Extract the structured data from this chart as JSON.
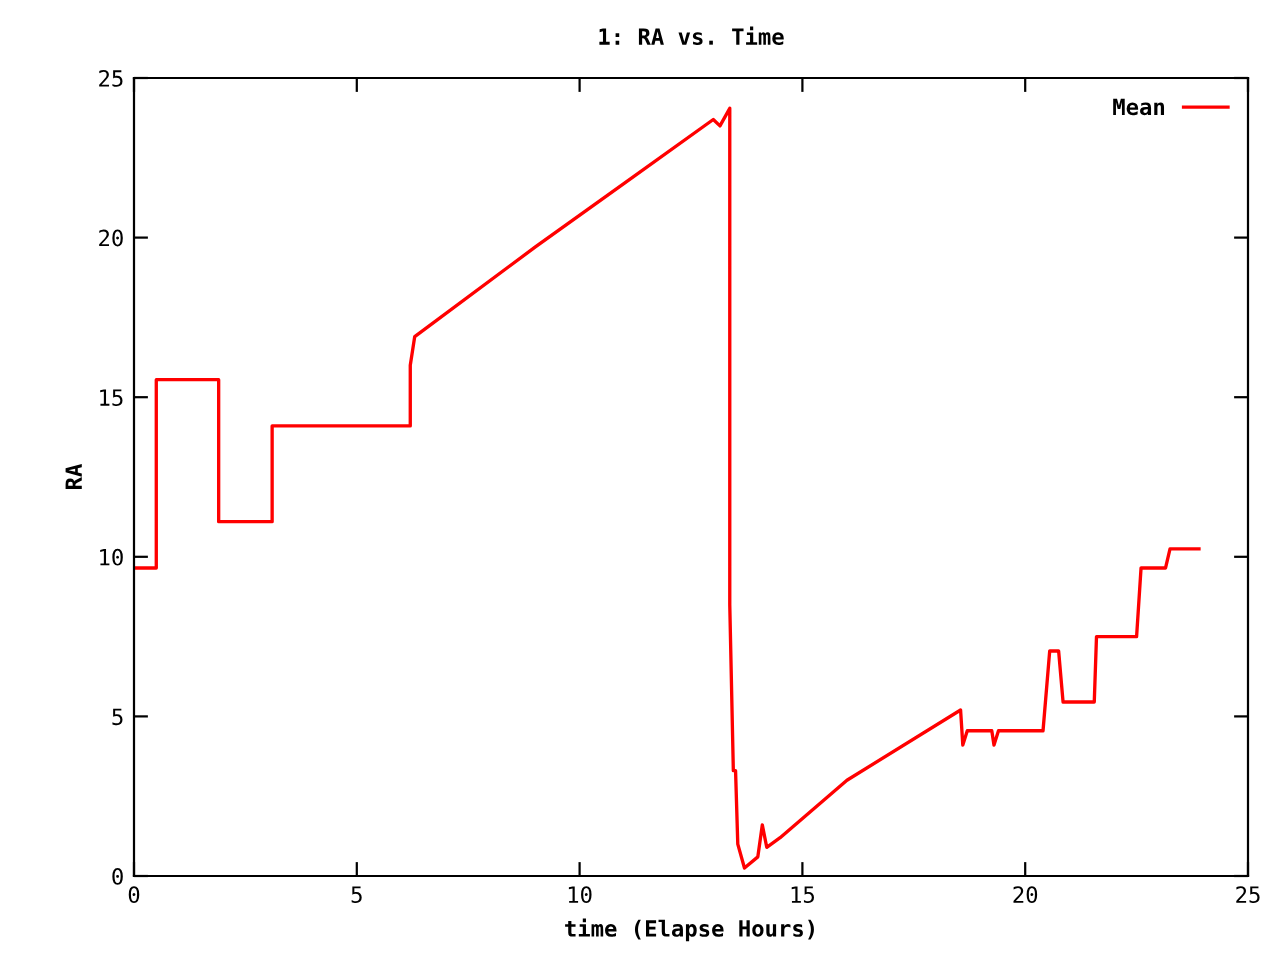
{
  "chart_data": {
    "type": "line",
    "title": "1: RA vs. Time",
    "xlabel": "time (Elapse Hours)",
    "ylabel": "RA",
    "series": [
      {
        "name": "Mean",
        "color": "#ff0000",
        "x": [
          0,
          0.5,
          0.5,
          1.9,
          1.9,
          3.1,
          3.1,
          6.2,
          6.2,
          6.3,
          9.0,
          11.0,
          13.0,
          13.15,
          13.37,
          13.37,
          13.45,
          13.5,
          13.55,
          13.7,
          14.0,
          14.1,
          14.2,
          14.5,
          16.0,
          18.55,
          18.6,
          18.7,
          19.25,
          19.3,
          19.4,
          20.4,
          20.55,
          20.75,
          20.85,
          21.55,
          21.6,
          22.5,
          22.6,
          23.15,
          23.25,
          23.9
        ],
        "values": [
          9.65,
          9.65,
          15.55,
          15.55,
          11.1,
          11.1,
          14.1,
          14.1,
          16.0,
          16.9,
          19.7,
          21.7,
          23.7,
          23.5,
          24.05,
          8.5,
          3.3,
          3.3,
          1.0,
          0.25,
          0.6,
          1.6,
          0.9,
          1.2,
          3.0,
          5.2,
          4.1,
          4.55,
          4.55,
          4.1,
          4.55,
          4.55,
          7.05,
          7.05,
          5.45,
          5.45,
          7.5,
          7.5,
          9.65,
          9.65,
          10.25,
          10.25
        ]
      }
    ],
    "xlim": [
      0,
      25
    ],
    "ylim": [
      0,
      25
    ],
    "xticks": [
      0,
      5,
      10,
      15,
      20,
      25
    ],
    "yticks": [
      0,
      5,
      10,
      15,
      20,
      25
    ],
    "grid": false,
    "legend": "top right",
    "marker": "none",
    "line_style": "solid"
  }
}
